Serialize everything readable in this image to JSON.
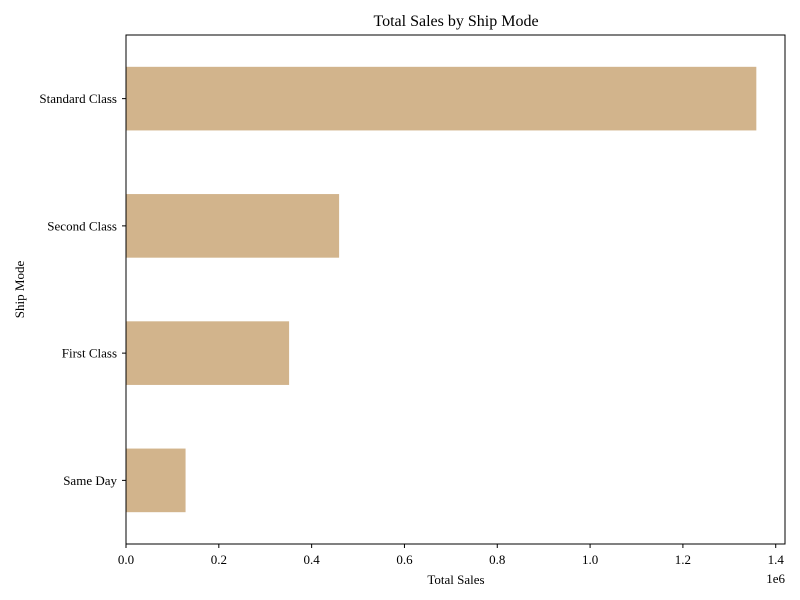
{
  "chart_data": {
    "type": "bar",
    "orientation": "horizontal",
    "title": "Total Sales by Ship Mode",
    "xlabel": "Total Sales",
    "ylabel": "Ship Mode",
    "x_scale_label": "1e6",
    "categories": [
      "Standard Class",
      "Second Class",
      "First Class",
      "Same Day"
    ],
    "values": [
      1358216,
      459194,
      351428,
      128363
    ],
    "xlim": [
      0,
      1420000
    ],
    "xticks": [
      0,
      200000,
      400000,
      600000,
      800000,
      1000000,
      1200000,
      1400000
    ],
    "xtick_labels": [
      "0.0",
      "0.2",
      "0.4",
      "0.6",
      "0.8",
      "1.0",
      "1.2",
      "1.4"
    ],
    "grid": false,
    "legend": "none",
    "bar_color": "#d2b48c"
  }
}
